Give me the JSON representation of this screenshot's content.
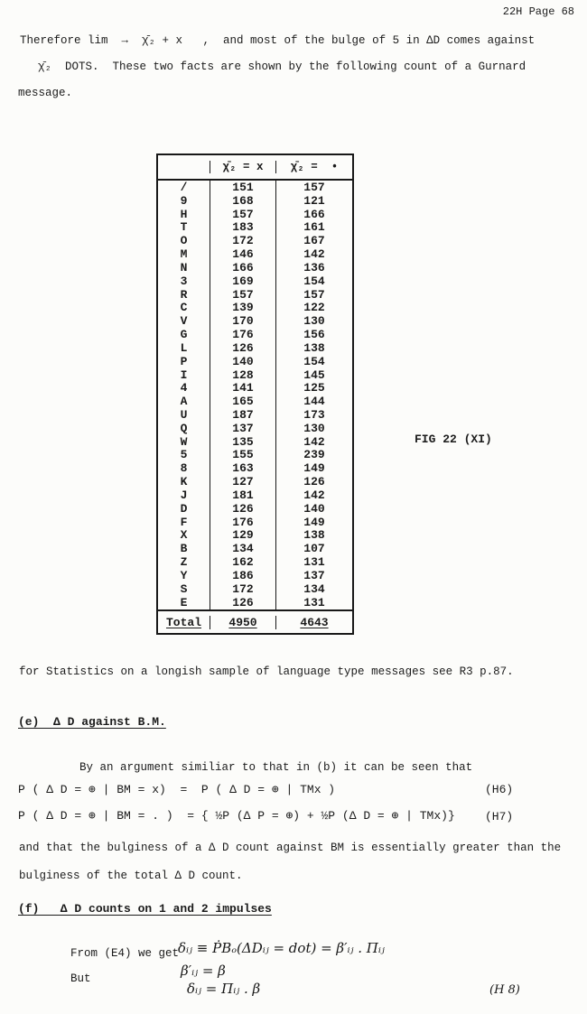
{
  "page": {
    "header": "22H Page 68"
  },
  "intro": {
    "line1": "Therefore lim  →  χ̄₂ + x   ,  and most of the bulge of 5 in ΔD comes against",
    "line2": "χ̄₂  DOTS.  These two facts are shown by the following count of a Gurnard",
    "line3": "message."
  },
  "figure": {
    "label": "FIG 22 (XI)",
    "table": {
      "headers": [
        "",
        "χ̄₂ = x",
        "χ̄₂ =  •"
      ],
      "rows": [
        [
          "/",
          "151",
          "157"
        ],
        [
          "9",
          "168",
          "121"
        ],
        [
          "H",
          "157",
          "166"
        ],
        [
          "T",
          "183",
          "161"
        ],
        [
          "O",
          "172",
          "167"
        ],
        [
          "M",
          "146",
          "142"
        ],
        [
          "N",
          "166",
          "136"
        ],
        [
          "3",
          "169",
          "154"
        ],
        [
          "R",
          "157",
          "157"
        ],
        [
          "C",
          "139",
          "122"
        ],
        [
          "V",
          "170",
          "130"
        ],
        [
          "G",
          "176",
          "156"
        ],
        [
          "L",
          "126",
          "138"
        ],
        [
          "P",
          "140",
          "154"
        ],
        [
          "I",
          "128",
          "145"
        ],
        [
          "4",
          "141",
          "125"
        ],
        [
          "A",
          "165",
          "144"
        ],
        [
          "U",
          "187",
          "173"
        ],
        [
          "Q",
          "137",
          "130"
        ],
        [
          "W",
          "135",
          "142"
        ],
        [
          "5",
          "155",
          "239"
        ],
        [
          "8",
          "163",
          "149"
        ],
        [
          "K",
          "127",
          "126"
        ],
        [
          "J",
          "181",
          "142"
        ],
        [
          "D",
          "126",
          "140"
        ],
        [
          "F",
          "176",
          "149"
        ],
        [
          "X",
          "129",
          "138"
        ],
        [
          "B",
          "134",
          "107"
        ],
        [
          "Z",
          "162",
          "131"
        ],
        [
          "Y",
          "186",
          "137"
        ],
        [
          "S",
          "172",
          "134"
        ],
        [
          "E",
          "126",
          "131"
        ]
      ],
      "total_label": "Total",
      "totals": [
        "4950",
        "4643"
      ]
    }
  },
  "note": "for Statistics on a longish sample of language type messages see R3 p.87.",
  "section_e": {
    "heading": "(e)  Δ D against B.M.",
    "intro": "By an argument similiar to that in (b) it can be seen that",
    "eq_h6": "P ( Δ D = ⊕ | BM = x)  =  P ( Δ D = ⊕ | TMx )",
    "eq_h6_label": "(H6)",
    "eq_h7": "P ( Δ D = ⊕ | BM = . )  = { ½P (Δ P = ⊕) + ½P (Δ D = ⊕ | TMx)}",
    "eq_h7_label": "(H7)",
    "outro1": "and that the bulginess of a Δ D count against BM is essentially greater than the",
    "outro2": "bulginess of the total Δ D count."
  },
  "section_f": {
    "heading": "(f)   Δ D counts on 1 and 2 impulses",
    "from_label": "From (E4) we get",
    "but_label": "But",
    "hw1": "δᵢⱼ ≡ ṖBₒ(ΔDᵢⱼ = dot) = β′ᵢⱼ . Πᵢⱼ",
    "hw2": "β′ᵢⱼ = β",
    "hw3": "δᵢⱼ = Πᵢⱼ . β",
    "eq_label": "(H 8)"
  }
}
